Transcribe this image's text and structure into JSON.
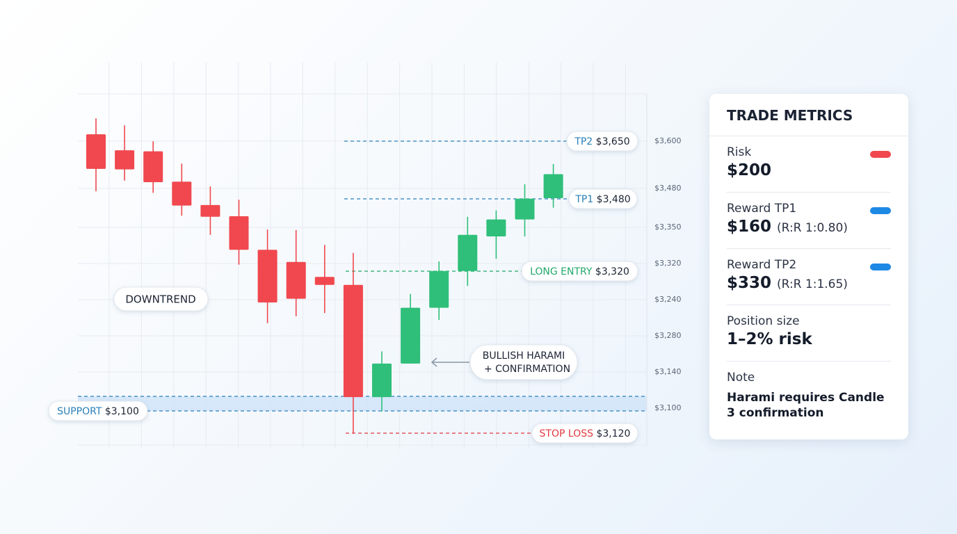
{
  "chart_data": {
    "type": "candlestick",
    "ylim": [
      3030,
      3690
    ],
    "up_color": "#2fbf7a",
    "down_color": "#f0484e",
    "y_axis_labels": [
      "$3,600",
      "$3,480",
      "$3,350",
      "$3,320",
      "$3,240",
      "$3,280",
      "$3,140",
      "$3,100"
    ],
    "candles": [
      {
        "open": 3614,
        "high": 3644,
        "low": 3507,
        "close": 3549
      },
      {
        "open": 3584,
        "high": 3631,
        "low": 3527,
        "close": 3548
      },
      {
        "open": 3582,
        "high": 3601,
        "low": 3504,
        "close": 3524
      },
      {
        "open": 3525,
        "high": 3559,
        "low": 3461,
        "close": 3480
      },
      {
        "open": 3481,
        "high": 3516,
        "low": 3425,
        "close": 3459
      },
      {
        "open": 3460,
        "high": 3491,
        "low": 3369,
        "close": 3397
      },
      {
        "open": 3397,
        "high": 3435,
        "low": 3259,
        "close": 3298
      },
      {
        "open": 3374,
        "high": 3434,
        "low": 3272,
        "close": 3305
      },
      {
        "open": 3346,
        "high": 3406,
        "low": 3278,
        "close": 3331
      },
      {
        "open": 3331,
        "high": 3391,
        "low": 3052,
        "close": 3120
      },
      {
        "open": 3120,
        "high": 3206,
        "low": 3093,
        "close": 3183
      },
      {
        "open": 3183,
        "high": 3314,
        "low": 3183,
        "close": 3288
      },
      {
        "open": 3288,
        "high": 3375,
        "low": 3265,
        "close": 3357
      },
      {
        "open": 3357,
        "high": 3459,
        "low": 3329,
        "close": 3425
      },
      {
        "open": 3422,
        "high": 3471,
        "low": 3380,
        "close": 3454
      },
      {
        "open": 3454,
        "high": 3520,
        "low": 3422,
        "close": 3493
      },
      {
        "open": 3494,
        "high": 3558,
        "low": 3476,
        "close": 3539
      }
    ],
    "levels": [
      {
        "name": "TP2",
        "price": "$3,650",
        "color": "#2a7fb8"
      },
      {
        "name": "TP1",
        "price": "$3,480",
        "color": "#2a7fb8"
      },
      {
        "name": "LONG ENTRY",
        "price": "$3,320",
        "color": "#22a86a"
      },
      {
        "name": "SUPPORT",
        "price": "$3,100",
        "color": "#2a7fb8"
      },
      {
        "name": "STOP LOSS",
        "price": "$3,120",
        "color": "#e0383e"
      }
    ],
    "annotations": [
      "DOWNTREND",
      "BULLISH HARAMI",
      "+ CONFIRMATION"
    ]
  },
  "metrics": {
    "title": "TRADE METRICS",
    "items": [
      {
        "label": "Risk",
        "value": "$200",
        "color": "#f0484e"
      },
      {
        "label": "Reward TP1",
        "value": "$160",
        "detail": "(R:R 1:0.80)",
        "color": "#1e88e5"
      },
      {
        "label": "Reward TP2",
        "value": "$330",
        "detail": "(R:R 1:1.65)",
        "color": "#1e88e5"
      },
      {
        "label": "Position size",
        "value": "1–2% risk"
      },
      {
        "label": "Note",
        "value": "Harami requires Candle 3 confirmation"
      }
    ]
  }
}
